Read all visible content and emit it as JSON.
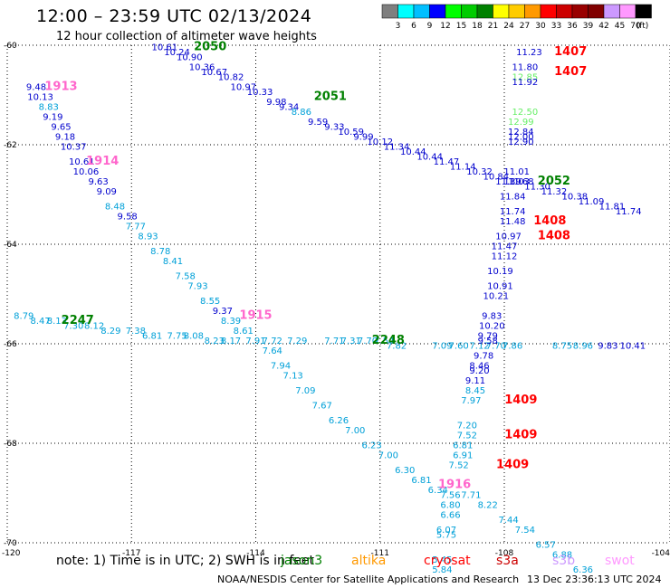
{
  "header": {
    "title": "12:00  –  23:59 UTC 02/13/2024",
    "subtitle": "12 hour collection of altimeter wave heights"
  },
  "colorbar": {
    "labels": [
      "3",
      "6",
      "9",
      "12",
      "15",
      "18",
      "21",
      "24",
      "27",
      "30",
      "33",
      "36",
      "39",
      "42",
      "45",
      "70",
      "(ft)"
    ],
    "colors": [
      "#7f7f7f",
      "#00ffff",
      "#00bfff",
      "#0000ff",
      "#00ff00",
      "#00cc00",
      "#008000",
      "#ffff00",
      "#ffcc00",
      "#ff9900",
      "#ff0000",
      "#cc0000",
      "#990000",
      "#800000",
      "#cc99ff",
      "#ff99ff",
      "#000000"
    ]
  },
  "legend": {
    "note": "note:  1) Time is in UTC; 2) SWH is in feet",
    "satellites": [
      {
        "name": "jason3",
        "color": "#008000"
      },
      {
        "name": "altika",
        "color": "#ff9900"
      },
      {
        "name": "cryosat",
        "color": "#ff0000"
      },
      {
        "name": "s3a",
        "color": "#cc0000"
      },
      {
        "name": "s3b",
        "color": "#cc99ff"
      },
      {
        "name": "swot",
        "color": "#ff99ff"
      }
    ]
  },
  "footer": {
    "credit": "NOAA/NESDIS Center for Satellite Applications and Research",
    "timestamp": "13 Dec 23:36:13 UTC 2024"
  },
  "chart_data": {
    "type": "scatter",
    "xlabel": "",
    "ylabel": "",
    "xlim": [
      -120,
      -104
    ],
    "ylim": [
      -70,
      -60
    ],
    "xticks": [
      -120,
      -117,
      -114,
      -111,
      -108,
      -104
    ],
    "yticks": [
      -60,
      -62,
      -64,
      -66,
      -68,
      -70
    ],
    "tick_labels_x": [
      "-120",
      "-117",
      "-114",
      "-111",
      "-108",
      "-104"
    ],
    "tick_labels_y": [
      "-60",
      "-62",
      "-64",
      "-66",
      "-68",
      "-70"
    ],
    "grid": true,
    "palette": {
      "b": "#0000cd",
      "c": "#00a0d8",
      "l": "#66ee66"
    },
    "tracks": [
      {
        "name": "swot",
        "label_color": "#ff66cc",
        "points": [
          [
            -119.3,
            -60.9,
            "9.48",
            "b"
          ],
          [
            -119.2,
            -61.1,
            "10.13",
            "b"
          ],
          [
            -119.0,
            -61.3,
            "8.83",
            "c"
          ],
          [
            -118.9,
            -61.5,
            "9.19",
            "b"
          ],
          [
            -118.7,
            -61.7,
            "9.65",
            "b"
          ],
          [
            -118.6,
            -61.9,
            "9.18",
            "b"
          ],
          [
            -118.4,
            -62.1,
            "10.37",
            "b"
          ],
          [
            -118.2,
            -62.4,
            "10.61",
            "b"
          ],
          [
            -118.1,
            -62.6,
            "10.06",
            "b"
          ],
          [
            -117.8,
            -62.8,
            "9.63",
            "b"
          ],
          [
            -117.6,
            -63.0,
            "9.09",
            "b"
          ],
          [
            -117.4,
            -63.3,
            "8.48",
            "c"
          ],
          [
            -117.1,
            -63.5,
            "9.58",
            "b"
          ],
          [
            -116.9,
            -63.7,
            "7.77",
            "c"
          ],
          [
            -116.6,
            -63.9,
            "8.93",
            "c"
          ],
          [
            -116.3,
            -64.2,
            "8.78",
            "c"
          ],
          [
            -116.0,
            -64.4,
            "8.41",
            "c"
          ],
          [
            -115.7,
            -64.7,
            "7.58",
            "c"
          ],
          [
            -115.4,
            -64.9,
            "7.93",
            "c"
          ],
          [
            -115.1,
            -65.2,
            "8.55",
            "c"
          ],
          [
            -114.8,
            -65.4,
            "9.37",
            "b"
          ],
          [
            -114.6,
            -65.6,
            "8.39",
            "c"
          ],
          [
            -114.3,
            -65.8,
            "8.61",
            "c"
          ],
          [
            -114.0,
            -66.0,
            "7.91",
            "c"
          ],
          [
            -113.6,
            -66.2,
            "7.64",
            "c"
          ],
          [
            -113.4,
            -66.5,
            "7.94",
            "c"
          ],
          [
            -113.1,
            -66.7,
            "7.13",
            "c"
          ],
          [
            -112.8,
            -67.0,
            "7.09",
            "c"
          ],
          [
            -112.4,
            -67.3,
            "7.67",
            "c"
          ],
          [
            -112.0,
            -67.6,
            "6.26",
            "c"
          ],
          [
            -111.6,
            -67.8,
            "7.00",
            "c"
          ],
          [
            -111.2,
            -68.1,
            "6.23",
            "c"
          ],
          [
            -110.8,
            -68.3,
            "7.00",
            "c"
          ],
          [
            -110.4,
            -68.6,
            "6.30",
            "c"
          ],
          [
            -110.0,
            -68.8,
            "6.81",
            "c"
          ],
          [
            -109.6,
            -69.0,
            "6.34",
            "c"
          ],
          [
            -109.3,
            -69.1,
            "7.56",
            "c"
          ]
        ],
        "passes": [
          [
            -118.7,
            -60.9,
            "1913"
          ],
          [
            -117.7,
            -62.4,
            "1914"
          ],
          [
            -114.0,
            -65.5,
            "1915"
          ],
          [
            -109.2,
            -68.9,
            "1916"
          ]
        ]
      },
      {
        "name": "jason3",
        "label_color": "#008000",
        "points": [
          [
            -116.2,
            -60.1,
            "10.61",
            "b"
          ],
          [
            -115.9,
            -60.2,
            "10.24",
            "b"
          ],
          [
            -115.6,
            -60.3,
            "10.90",
            "b"
          ],
          [
            -115.3,
            -60.5,
            "10.36",
            "b"
          ],
          [
            -115.0,
            -60.6,
            "10.67",
            "b"
          ],
          [
            -114.6,
            -60.7,
            "10.82",
            "b"
          ],
          [
            -114.3,
            -60.9,
            "10.97",
            "b"
          ],
          [
            -113.9,
            -61.0,
            "10.33",
            "b"
          ],
          [
            -113.5,
            -61.2,
            "9.98",
            "b"
          ],
          [
            -113.2,
            -61.3,
            "9.34",
            "b"
          ],
          [
            -112.9,
            -61.4,
            "8.86",
            "c"
          ],
          [
            -112.5,
            -61.6,
            "9.59",
            "b"
          ],
          [
            -112.1,
            -61.7,
            "9.33",
            "b"
          ],
          [
            -111.7,
            -61.8,
            "10.59",
            "b"
          ],
          [
            -111.4,
            -61.9,
            "9.99",
            "b"
          ],
          [
            -111.0,
            -62.0,
            "10.12",
            "b"
          ],
          [
            -110.6,
            -62.1,
            "11.34",
            "b"
          ],
          [
            -110.2,
            -62.2,
            "10.44",
            "b"
          ],
          [
            -109.8,
            -62.3,
            "10.44",
            "b"
          ],
          [
            -109.4,
            -62.4,
            "11.47",
            "b"
          ],
          [
            -109.0,
            -62.5,
            "11.14",
            "b"
          ],
          [
            -108.6,
            -62.6,
            "10.32",
            "b"
          ],
          [
            -108.2,
            -62.7,
            "10.84",
            "b"
          ],
          [
            -107.9,
            -62.8,
            "11.39",
            "b"
          ],
          [
            -107.6,
            -62.8,
            "11.68",
            "b"
          ],
          [
            -107.2,
            -62.9,
            "11.30",
            "b"
          ],
          [
            -106.8,
            -63.0,
            "11.32",
            "b"
          ],
          [
            -106.3,
            -63.1,
            "10.38",
            "b"
          ],
          [
            -105.9,
            -63.2,
            "11.09",
            "b"
          ],
          [
            -105.4,
            -63.3,
            "11.81",
            "b"
          ],
          [
            -105.0,
            -63.4,
            "11.74",
            "b"
          ],
          [
            -119.6,
            -65.5,
            "8.79",
            "c"
          ],
          [
            -119.2,
            -65.6,
            "8.47",
            "c"
          ],
          [
            -118.8,
            -65.6,
            "8.13",
            "c"
          ],
          [
            -118.4,
            -65.7,
            "7.30",
            "c"
          ],
          [
            -117.9,
            -65.7,
            "8.12",
            "c"
          ],
          [
            -117.5,
            -65.8,
            "8.29",
            "c"
          ],
          [
            -116.9,
            -65.8,
            "7.38",
            "c"
          ],
          [
            -116.5,
            -65.9,
            "6.81",
            "c"
          ],
          [
            -115.9,
            -65.9,
            "7.75",
            "c"
          ],
          [
            -115.5,
            -65.9,
            "8.08",
            "c"
          ],
          [
            -115.0,
            -66.0,
            "8.23",
            "c"
          ],
          [
            -114.6,
            -66.0,
            "8.17",
            "c"
          ],
          [
            -113.6,
            -66.0,
            "7.72",
            "c"
          ],
          [
            -113.0,
            -66.0,
            "7.29",
            "c"
          ],
          [
            -112.1,
            -66.0,
            "7.71",
            "c"
          ],
          [
            -111.7,
            -66.0,
            "7.31",
            "c"
          ],
          [
            -111.3,
            -66.0,
            "7.70",
            "c"
          ],
          [
            -110.9,
            -66.0,
            "7.54",
            "c"
          ],
          [
            -110.6,
            -66.1,
            "7.82",
            "c"
          ],
          [
            -109.5,
            -66.1,
            "7.09",
            "c"
          ],
          [
            -109.1,
            -66.1,
            "7.60",
            "c"
          ],
          [
            -108.6,
            -66.1,
            "7.12",
            "c"
          ],
          [
            -108.2,
            -66.1,
            "7.70",
            "c"
          ],
          [
            -107.8,
            -66.1,
            "7.86",
            "c"
          ],
          [
            -106.6,
            -66.1,
            "8.75",
            "c"
          ],
          [
            -106.1,
            -66.1,
            "8.96",
            "c"
          ],
          [
            -105.5,
            -66.1,
            "9.83",
            "b"
          ],
          [
            -104.9,
            -66.1,
            "10.41",
            "b"
          ]
        ],
        "passes": [
          [
            -115.1,
            -60.1,
            "2050"
          ],
          [
            -112.2,
            -61.1,
            "2051"
          ],
          [
            -106.8,
            -62.8,
            "2052"
          ],
          [
            -118.3,
            -65.6,
            "2247"
          ],
          [
            -110.8,
            -66.0,
            "2248"
          ]
        ]
      },
      {
        "name": "cryosat",
        "label_color": "#ff0000",
        "points": [
          [
            -107.4,
            -60.2,
            "11.23",
            "b"
          ],
          [
            -107.5,
            -60.5,
            "11.80",
            "b"
          ],
          [
            -107.5,
            -60.7,
            "12.85",
            "l"
          ],
          [
            -107.5,
            -60.8,
            "11.92",
            "b"
          ],
          [
            -107.5,
            -61.4,
            "12.50",
            "l"
          ],
          [
            -107.6,
            -61.6,
            "12.99",
            "l"
          ],
          [
            -107.6,
            -61.8,
            "12.84",
            "b"
          ],
          [
            -107.6,
            -61.9,
            "12.00",
            "b"
          ],
          [
            -107.6,
            -62.0,
            "12.90",
            "b"
          ],
          [
            -107.7,
            -62.6,
            "11.01",
            "b"
          ],
          [
            -107.7,
            -62.8,
            "11.03",
            "b"
          ],
          [
            -107.8,
            -63.1,
            "11.84",
            "b"
          ],
          [
            -107.8,
            -63.4,
            "11.74",
            "b"
          ],
          [
            -107.8,
            -63.6,
            "11.48",
            "b"
          ],
          [
            -107.9,
            -63.9,
            "10.97",
            "b"
          ],
          [
            -108.0,
            -64.1,
            "11.47",
            "b"
          ],
          [
            -108.0,
            -64.3,
            "11.12",
            "b"
          ],
          [
            -108.1,
            -64.6,
            "10.19",
            "b"
          ],
          [
            -108.1,
            -64.9,
            "10.91",
            "b"
          ],
          [
            -108.2,
            -65.1,
            "10.21",
            "b"
          ],
          [
            -108.3,
            -65.5,
            "9.83",
            "b"
          ],
          [
            -108.3,
            -65.7,
            "10.20",
            "b"
          ],
          [
            -108.4,
            -65.9,
            "9.79",
            "b"
          ],
          [
            -108.4,
            -66.0,
            "9.58",
            "b"
          ],
          [
            -108.5,
            -66.3,
            "9.78",
            "b"
          ],
          [
            -108.6,
            -66.5,
            "8.46",
            "b"
          ],
          [
            -108.6,
            -66.6,
            "9.20",
            "b"
          ],
          [
            -108.7,
            -66.8,
            "9.11",
            "b"
          ],
          [
            -108.7,
            -67.0,
            "8.45",
            "c"
          ],
          [
            -108.8,
            -67.2,
            "7.97",
            "c"
          ],
          [
            -108.9,
            -67.7,
            "7.20",
            "c"
          ],
          [
            -108.9,
            -67.9,
            "7.52",
            "c"
          ],
          [
            -109.0,
            -68.1,
            "6.81",
            "c"
          ],
          [
            -109.0,
            -68.3,
            "6.91",
            "c"
          ],
          [
            -109.1,
            -68.5,
            "7.52",
            "c"
          ],
          [
            -109.3,
            -69.3,
            "6.80",
            "c"
          ],
          [
            -109.3,
            -69.5,
            "6.66",
            "c"
          ],
          [
            -109.4,
            -69.8,
            "6.07",
            "c"
          ],
          [
            -109.4,
            -69.9,
            "5.75",
            "c"
          ],
          [
            -109.5,
            -70.4,
            "5.45",
            "c"
          ],
          [
            -109.5,
            -70.6,
            "5.84",
            "c"
          ],
          [
            -108.8,
            -69.1,
            "7.71",
            "c"
          ],
          [
            -108.4,
            -69.3,
            "8.22",
            "c"
          ],
          [
            -107.9,
            -69.6,
            "7.44",
            "c"
          ],
          [
            -107.5,
            -69.8,
            "7.54",
            "c"
          ],
          [
            -107.0,
            -70.1,
            "6.57",
            "c"
          ],
          [
            -106.6,
            -70.3,
            "6.88",
            "c"
          ],
          [
            -106.1,
            -70.6,
            "6.36",
            "c"
          ]
        ],
        "passes": [
          [
            -106.4,
            -60.2,
            "1407"
          ],
          [
            -106.4,
            -60.6,
            "1407"
          ],
          [
            -106.9,
            -63.6,
            "1408"
          ],
          [
            -106.8,
            -63.9,
            "1408"
          ],
          [
            -107.6,
            -67.2,
            "1409"
          ],
          [
            -107.6,
            -67.9,
            "1409"
          ],
          [
            -107.8,
            -68.5,
            "1409"
          ]
        ]
      }
    ]
  }
}
